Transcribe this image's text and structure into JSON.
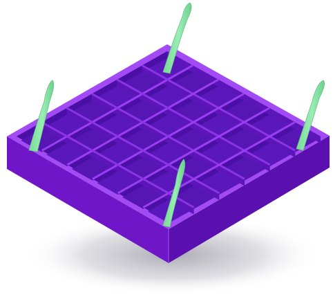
{
  "illustration": {
    "subject": "purple-grid-tray-with-green-strips",
    "grid_cells": 6,
    "strip_count": 4,
    "colors": {
      "background": "#ffffff",
      "shadow": "#9a98a3",
      "inner_floor": "#5a18bc",
      "inner_wall": "#4a10a6",
      "divider_top": "#9b3ef2",
      "rim_top": "#a24af4",
      "front_left_face": "#6e16c8",
      "front_right_face": "#5b0fb0",
      "strip_green": "#8de6a6",
      "strip_green_dark": "#65c987"
    }
  }
}
